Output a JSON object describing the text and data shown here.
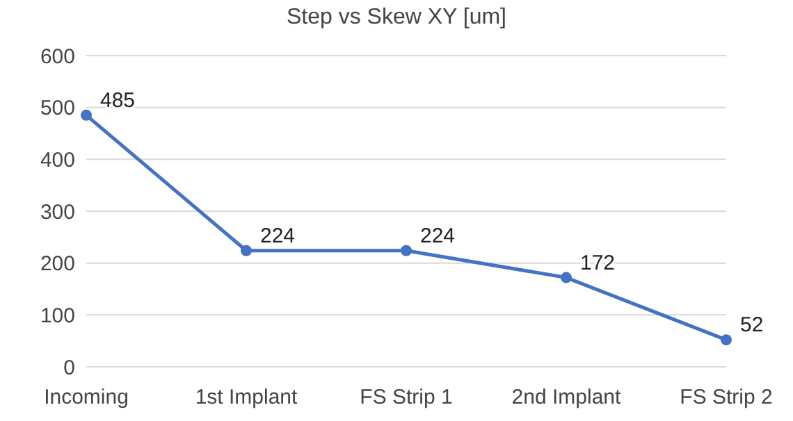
{
  "chart_data": {
    "type": "line",
    "title": "Step vs Skew XY [um]",
    "categories": [
      "Incoming",
      "1st Implant",
      "FS Strip 1",
      "2nd Implant",
      "FS Strip 2"
    ],
    "series": [
      {
        "color": "#4472c4",
        "values": [
          485,
          224,
          224,
          172,
          52
        ]
      }
    ],
    "ylim": [
      0,
      600
    ],
    "yticks": [
      0,
      100,
      200,
      300,
      400,
      500,
      600
    ],
    "grid": "y",
    "marker": "circle",
    "line_style": "solid",
    "data_labels": true
  }
}
